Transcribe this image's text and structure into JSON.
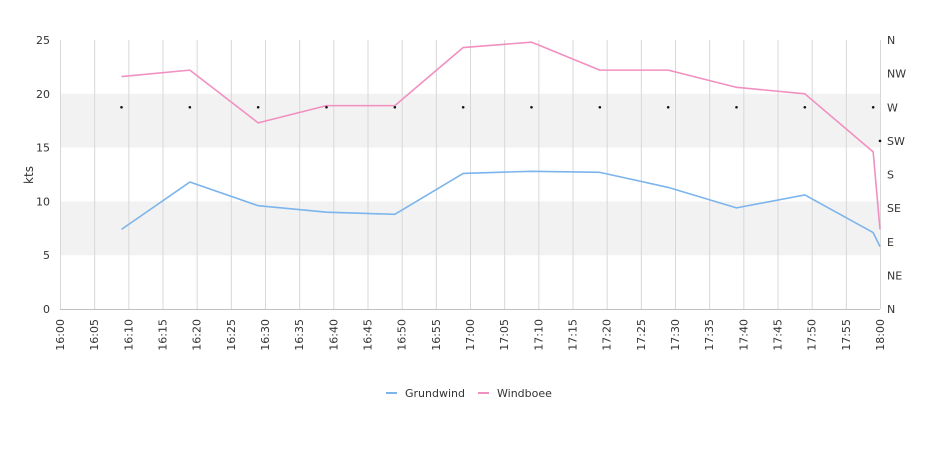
{
  "chart_data": {
    "type": "line",
    "ylabel": "kts",
    "ylim": [
      0,
      25
    ],
    "yticks": [
      0,
      5,
      10,
      15,
      20,
      25
    ],
    "xlim": [
      "16:00",
      "18:00"
    ],
    "xticks": [
      "16:00",
      "16:05",
      "16:10",
      "16:15",
      "16:20",
      "16:25",
      "16:30",
      "16:35",
      "16:40",
      "16:45",
      "16:50",
      "16:55",
      "17:00",
      "17:05",
      "17:10",
      "17:15",
      "17:20",
      "17:25",
      "17:30",
      "17:35",
      "17:40",
      "17:45",
      "17:50",
      "17:55",
      "18:00"
    ],
    "right_axis": {
      "title": "",
      "ticks": [
        "N",
        "NW",
        "W",
        "SW",
        "S",
        "SE",
        "E",
        "NE",
        "N"
      ]
    },
    "bands": [
      [
        5,
        10
      ],
      [
        15,
        20
      ]
    ],
    "grid": "vertical",
    "legend": "bottom-center",
    "series": [
      {
        "name": "Grundwind",
        "color": "#7cb5ec",
        "x": [
          "16:09",
          "16:19",
          "16:29",
          "16:39",
          "16:49",
          "16:59",
          "17:09",
          "17:19",
          "17:29",
          "17:39",
          "17:49",
          "17:59",
          "18:00"
        ],
        "values": [
          7.4,
          11.8,
          9.6,
          9.0,
          8.8,
          12.6,
          12.8,
          12.7,
          11.3,
          9.4,
          10.6,
          7.1,
          5.8
        ]
      },
      {
        "name": "Windboee",
        "color": "#f190c0",
        "x": [
          "16:09",
          "16:19",
          "16:29",
          "16:39",
          "16:49",
          "16:59",
          "17:09",
          "17:19",
          "17:29",
          "17:39",
          "17:49",
          "17:59",
          "18:00"
        ],
        "values": [
          21.6,
          22.2,
          17.3,
          18.9,
          18.9,
          24.3,
          24.8,
          22.2,
          22.2,
          20.6,
          20.0,
          14.6,
          7.4
        ]
      }
    ],
    "direction_points": {
      "x": [
        "16:09",
        "16:19",
        "16:29",
        "16:39",
        "16:49",
        "16:59",
        "17:09",
        "17:19",
        "17:29",
        "17:39",
        "17:49",
        "17:59",
        "18:00"
      ],
      "y": [
        "W",
        "W",
        "W",
        "W",
        "W",
        "W",
        "W",
        "W",
        "W",
        "W",
        "W",
        "W",
        "SW"
      ]
    }
  }
}
